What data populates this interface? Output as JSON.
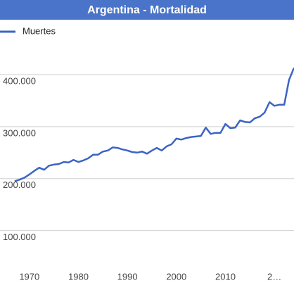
{
  "chart_data": {
    "type": "line",
    "title": "Argentina - Mortalidad",
    "x": [
      1967,
      1968,
      1969,
      1970,
      1971,
      1972,
      1973,
      1974,
      1975,
      1976,
      1977,
      1978,
      1979,
      1980,
      1981,
      1982,
      1983,
      1984,
      1985,
      1986,
      1987,
      1988,
      1989,
      1990,
      1991,
      1992,
      1993,
      1994,
      1995,
      1996,
      1997,
      1998,
      1999,
      2000,
      2001,
      2002,
      2003,
      2004,
      2005,
      2006,
      2007,
      2008,
      2009,
      2010,
      2011,
      2012,
      2013,
      2014,
      2015,
      2016,
      2017,
      2018,
      2019,
      2020,
      2021,
      2022,
      2023,
      2024
    ],
    "series": [
      {
        "name": "Muertes",
        "color": "#3b64c4",
        "values": [
          195000,
          198000,
          202000,
          208000,
          215000,
          221000,
          217000,
          225000,
          227000,
          228000,
          232000,
          231000,
          236000,
          232000,
          235000,
          239000,
          246000,
          246000,
          252000,
          254000,
          260000,
          259000,
          256000,
          254000,
          251000,
          250000,
          252000,
          248000,
          254000,
          259000,
          254000,
          262000,
          266000,
          277000,
          275000,
          278000,
          280000,
          281000,
          282000,
          298000,
          286000,
          288000,
          288000,
          305000,
          297000,
          298000,
          312000,
          309000,
          308000,
          316000,
          319000,
          327000,
          347000,
          340000,
          342000,
          342000,
          390000,
          413000
        ]
      }
    ],
    "xlim": [
      1964,
      2024
    ],
    "xticks": [
      1970,
      1980,
      1990,
      2000,
      2010,
      {
        "value": 2020,
        "label": "2…"
      }
    ],
    "ylim": [
      40000,
      500000
    ],
    "yticks": [
      {
        "value": 100000,
        "label": "100.000"
      },
      {
        "value": 200000,
        "label": "200.000"
      },
      {
        "value": 300000,
        "label": "300.000"
      },
      {
        "value": 400000,
        "label": "400.000"
      }
    ],
    "grid": true
  }
}
